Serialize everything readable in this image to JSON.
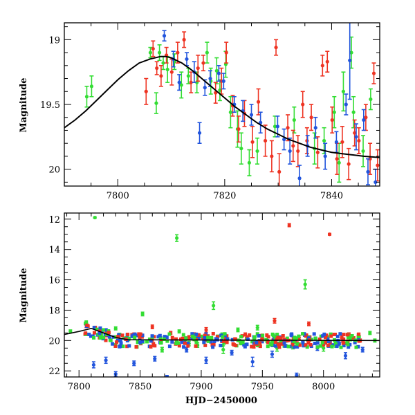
{
  "colors": {
    "green": "#33dd33",
    "red": "#ee3322",
    "blue": "#2255dd",
    "fit": "#000000"
  },
  "chart_data": [
    {
      "type": "scatter",
      "title": "",
      "xlabel": "",
      "ylabel": "Magnitude",
      "xlim": [
        7790,
        7849
      ],
      "ylim": [
        20.13,
        18.87
      ],
      "y_inverted": true,
      "xticks": [
        7800,
        7820,
        7840
      ],
      "yticks": [
        19,
        19.5,
        20
      ],
      "xtick_labels": [
        "7800",
        "7820",
        "7840"
      ],
      "ytick_labels": [
        "19",
        "19.5",
        "20"
      ],
      "fit_curve": {
        "label": "",
        "baseline": 19.94,
        "peak_mag": 19.13,
        "peak_x": 7809,
        "width": 9,
        "x": [
          7790,
          7792,
          7794,
          7796,
          7798,
          7800,
          7802,
          7804,
          7806,
          7808,
          7809,
          7810,
          7812,
          7814,
          7816,
          7818,
          7820,
          7822,
          7824,
          7826,
          7828,
          7830,
          7832,
          7834,
          7836,
          7838,
          7840,
          7842,
          7844,
          7846,
          7849
        ],
        "y": [
          19.68,
          19.62,
          19.55,
          19.47,
          19.39,
          19.31,
          19.24,
          19.18,
          19.15,
          19.13,
          19.13,
          19.14,
          19.18,
          19.24,
          19.31,
          19.38,
          19.45,
          19.52,
          19.58,
          19.64,
          19.69,
          19.73,
          19.77,
          19.8,
          19.83,
          19.85,
          19.87,
          19.88,
          19.89,
          19.9,
          19.91
        ]
      },
      "series": [
        {
          "name": "",
          "color": "green",
          "points": [
            [
              7794.2,
              19.44,
              0.08
            ],
            [
              7795.1,
              19.36,
              0.08
            ],
            [
              7806.1,
              19.1,
              0.04
            ],
            [
              7807.2,
              19.49,
              0.08
            ],
            [
              7807.8,
              19.1,
              0.06
            ],
            [
              7808.5,
              19.18,
              0.05
            ],
            [
              7809.3,
              19.23,
              0.1
            ],
            [
              7810.6,
              19.17,
              0.06
            ],
            [
              7811.9,
              19.35,
              0.1
            ],
            [
              7813.2,
              19.28,
              0.06
            ],
            [
              7814.8,
              19.33,
              0.08
            ],
            [
              7816.7,
              19.1,
              0.08
            ],
            [
              7817.4,
              19.32,
              0.1
            ],
            [
              7818.5,
              19.24,
              0.1
            ],
            [
              7819.1,
              19.39,
              0.08
            ],
            [
              7820.2,
              19.19,
              0.1
            ],
            [
              7821.1,
              19.56,
              0.12
            ],
            [
              7822.4,
              19.69,
              0.14
            ],
            [
              7823.1,
              19.84,
              0.12
            ],
            [
              7824.6,
              19.95,
              0.1
            ],
            [
              7826.1,
              19.86,
              0.1
            ],
            [
              7829.4,
              19.67,
              0.08
            ],
            [
              7833.0,
              19.62,
              0.1
            ],
            [
              7836.8,
              19.84,
              0.12
            ],
            [
              7838.6,
              19.78,
              0.1
            ],
            [
              7840.5,
              19.56,
              0.12
            ],
            [
              7841.4,
              19.95,
              0.15
            ],
            [
              7842.2,
              19.4,
              0.15
            ],
            [
              7843.7,
              19.1,
              0.12
            ],
            [
              7844.1,
              19.56,
              0.12
            ],
            [
              7845.9,
              19.86,
              0.12
            ],
            [
              7847.3,
              19.46,
              0.08
            ]
          ]
        },
        {
          "name": "",
          "color": "red",
          "points": [
            [
              7805.3,
              19.4,
              0.1
            ],
            [
              7806.6,
              19.07,
              0.06
            ],
            [
              7807.3,
              19.22,
              0.05
            ],
            [
              7808.1,
              19.28,
              0.08
            ],
            [
              7809.1,
              19.12,
              0.06
            ],
            [
              7810.1,
              19.25,
              0.1
            ],
            [
              7811.2,
              19.1,
              0.08
            ],
            [
              7812.4,
              19.0,
              0.06
            ],
            [
              7813.7,
              19.33,
              0.08
            ],
            [
              7815.0,
              19.22,
              0.1
            ],
            [
              7816.0,
              19.18,
              0.06
            ],
            [
              7818.3,
              19.41,
              0.08
            ],
            [
              7819.4,
              19.32,
              0.1
            ],
            [
              7820.3,
              19.1,
              0.08
            ],
            [
              7821.5,
              19.51,
              0.08
            ],
            [
              7822.6,
              19.69,
              0.1
            ],
            [
              7823.7,
              19.57,
              0.1
            ],
            [
              7825.2,
              19.79,
              0.12
            ],
            [
              7826.3,
              19.48,
              0.1
            ],
            [
              7827.6,
              19.78,
              0.12
            ],
            [
              7828.8,
              19.9,
              0.12
            ],
            [
              7829.6,
              19.06,
              0.06
            ],
            [
              7830.2,
              20.02,
              0.14
            ],
            [
              7831.8,
              19.68,
              0.1
            ],
            [
              7832.8,
              19.82,
              0.12
            ],
            [
              7833.7,
              19.86,
              0.12
            ],
            [
              7834.6,
              19.5,
              0.1
            ],
            [
              7835.4,
              19.78,
              0.1
            ],
            [
              7836.2,
              19.6,
              0.1
            ],
            [
              7837.4,
              19.87,
              0.12
            ],
            [
              7838.3,
              19.2,
              0.08
            ],
            [
              7839.2,
              19.17,
              0.08
            ],
            [
              7840.1,
              19.62,
              0.1
            ],
            [
              7841.0,
              19.92,
              0.12
            ],
            [
              7842.0,
              19.79,
              0.12
            ],
            [
              7843.2,
              19.96,
              0.12
            ],
            [
              7844.3,
              19.72,
              0.1
            ],
            [
              7845.1,
              19.78,
              0.1
            ],
            [
              7846.4,
              19.6,
              0.1
            ],
            [
              7847.2,
              19.92,
              0.12
            ],
            [
              7847.9,
              19.26,
              0.08
            ],
            [
              7848.6,
              19.97,
              0.12
            ]
          ]
        },
        {
          "name": "",
          "color": "blue",
          "points": [
            [
              7808.7,
              18.97,
              0.04
            ],
            [
              7810.4,
              19.15,
              0.06
            ],
            [
              7811.5,
              19.33,
              0.06
            ],
            [
              7812.9,
              19.15,
              0.05
            ],
            [
              7814.3,
              19.25,
              0.08
            ],
            [
              7815.3,
              19.72,
              0.08
            ],
            [
              7816.3,
              19.37,
              0.06
            ],
            [
              7817.3,
              19.3,
              0.06
            ],
            [
              7818.9,
              19.26,
              0.06
            ],
            [
              7819.8,
              19.32,
              0.06
            ],
            [
              7821.8,
              19.5,
              0.06
            ],
            [
              7823.4,
              19.55,
              0.08
            ],
            [
              7825.0,
              19.58,
              0.08
            ],
            [
              7826.7,
              19.64,
              0.08
            ],
            [
              7829.9,
              19.67,
              0.08
            ],
            [
              7831.1,
              19.77,
              0.08
            ],
            [
              7832.2,
              19.86,
              0.1
            ],
            [
              7834.0,
              20.07,
              0.1
            ],
            [
              7835.5,
              19.82,
              0.08
            ],
            [
              7837.0,
              19.68,
              0.08
            ],
            [
              7838.8,
              19.9,
              0.1
            ],
            [
              7840.9,
              19.79,
              0.08
            ],
            [
              7842.7,
              19.5,
              0.08
            ],
            [
              7843.4,
              19.16,
              0.3
            ],
            [
              7844.6,
              19.75,
              0.1
            ],
            [
              7846.0,
              19.62,
              0.08
            ],
            [
              7846.8,
              20.02,
              0.1
            ],
            [
              7848.2,
              20.1,
              0.1
            ]
          ]
        }
      ]
    },
    {
      "type": "scatter",
      "title": "",
      "xlabel": "HJD−2450000",
      "ylabel": "Magnitude",
      "xlim": [
        7788,
        8046
      ],
      "ylim": [
        22.4,
        11.6
      ],
      "y_inverted": true,
      "xticks": [
        7800,
        7850,
        7900,
        7950,
        8000
      ],
      "yticks": [
        12,
        14,
        16,
        18,
        20,
        22
      ],
      "xtick_labels": [
        "7800",
        "7850",
        "7900",
        "7950",
        "8000"
      ],
      "ytick_labels": [
        "12",
        "14",
        "16",
        "18",
        "20",
        "22"
      ],
      "series": [
        {
          "name": "",
          "color": "green",
          "points": [
            [
              7793,
              19.4,
              0.1
            ],
            [
              7813,
              11.9,
              0.05
            ],
            [
              7818,
              19.4,
              0.1
            ],
            [
              7830,
              19.2,
              0.1
            ],
            [
              7848,
              20.1,
              0.1
            ],
            [
              7852,
              18.25,
              0.12
            ],
            [
              7868,
              20.6,
              0.15
            ],
            [
              7880,
              13.25,
              0.22
            ],
            [
              7882,
              19.4,
              0.1
            ],
            [
              7890,
              20.2,
              0.15
            ],
            [
              7897,
              20.3,
              0.15
            ],
            [
              7910,
              17.7,
              0.25
            ],
            [
              7918,
              20.6,
              0.25
            ],
            [
              7930,
              19.3,
              0.12
            ],
            [
              7946,
              19.15,
              0.15
            ],
            [
              7962,
              20.5,
              0.2
            ],
            [
              7975,
              20.4,
              0.15
            ],
            [
              7985,
              16.3,
              0.3
            ],
            [
              7987,
              19.9,
              0.12
            ],
            [
              8000,
              20.5,
              0.2
            ],
            [
              8010,
              20.1,
              0.12
            ],
            [
              8022,
              19.9,
              0.12
            ],
            [
              8038,
              19.5,
              0.1
            ],
            [
              8042,
              20.0,
              0.1
            ]
          ]
        },
        {
          "name": "",
          "color": "red",
          "points": [
            [
              7806,
              19.0,
              0.15
            ],
            [
              7822,
              19.5,
              0.12
            ],
            [
              7845,
              19.6,
              0.1
            ],
            [
              7860,
              19.1,
              0.12
            ],
            [
              7875,
              19.5,
              0.1
            ],
            [
              7890,
              19.8,
              0.12
            ],
            [
              7904,
              19.3,
              0.15
            ],
            [
              7920,
              19.9,
              0.12
            ],
            [
              7936,
              19.6,
              0.1
            ],
            [
              7950,
              19.7,
              0.12
            ],
            [
              7960,
              18.7,
              0.15
            ],
            [
              7972,
              12.4,
              0.1
            ],
            [
              7980,
              19.8,
              0.12
            ],
            [
              7988,
              18.9,
              0.12
            ],
            [
              8005,
              13.0,
              0.06
            ],
            [
              8015,
              19.8,
              0.1
            ],
            [
              8030,
              20.0,
              0.1
            ]
          ]
        },
        {
          "name": "",
          "color": "blue",
          "points": [
            [
              7812,
              21.6,
              0.2
            ],
            [
              7822,
              21.3,
              0.2
            ],
            [
              7830,
              22.2,
              0.15
            ],
            [
              7845,
              21.5,
              0.15
            ],
            [
              7862,
              21.2,
              0.15
            ],
            [
              7872,
              22.4,
              0.1
            ],
            [
              7888,
              20.6,
              0.15
            ],
            [
              7904,
              21.3,
              0.2
            ],
            [
              7925,
              20.8,
              0.15
            ],
            [
              7942,
              21.4,
              0.3
            ],
            [
              7958,
              20.9,
              0.2
            ],
            [
              7978,
              22.3,
              0.15
            ],
            [
              7995,
              20.5,
              0.15
            ],
            [
              8018,
              21.0,
              0.2
            ],
            [
              8032,
              20.6,
              0.15
            ]
          ]
        }
      ]
    }
  ]
}
